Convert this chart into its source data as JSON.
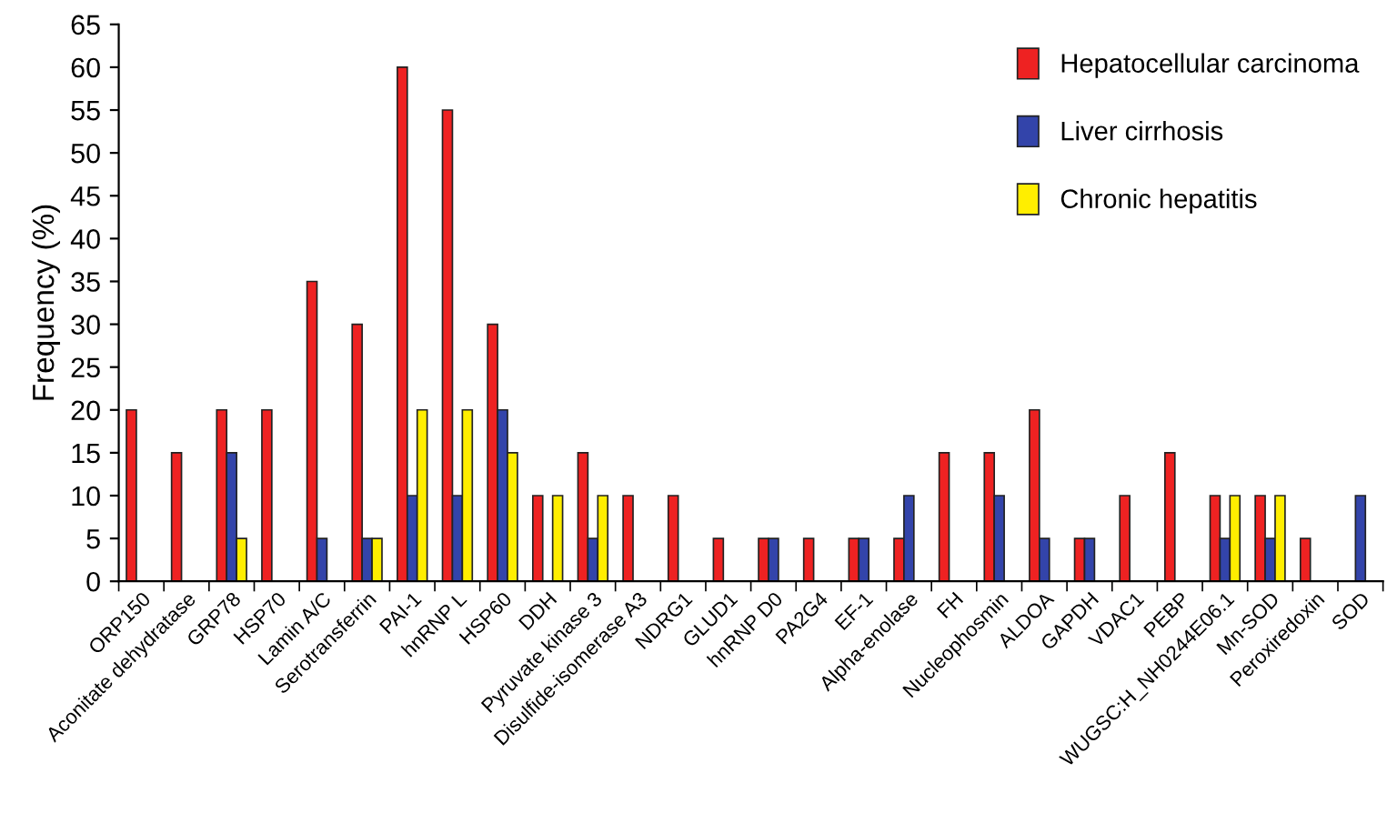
{
  "chart_data": {
    "type": "bar",
    "ylabel": "Frequency (%)",
    "categories": [
      "ORP150",
      "Aconitate dehydratase",
      "GRP78",
      "HSP70",
      "Lamin A/C",
      "Serotransferrin",
      "PAI-1",
      "hnRNP L",
      "HSP60",
      "DDH",
      "Pyruvate kinase 3",
      "Disulfide-isomerase A3",
      "NDRG1",
      "GLUD1",
      "hnRNP D0",
      "PA2G4",
      "EF-1",
      "Alpha-enolase",
      "FH",
      "Nucleophosmin",
      "ALDOA",
      "GAPDH",
      "VDAC1",
      "PEBP",
      "WUGSC:H_NH0244E06.1",
      "Mn-SOD",
      "Peroxiredoxin",
      "SOD"
    ],
    "series": [
      {
        "name": "Hepatocellular carcinoma",
        "color": "#ee2222",
        "values": [
          20,
          15,
          20,
          20,
          35,
          30,
          60,
          55,
          30,
          10,
          15,
          10,
          10,
          5,
          5,
          5,
          5,
          5,
          15,
          15,
          20,
          5,
          10,
          15,
          10,
          10,
          5,
          null
        ]
      },
      {
        "name": "Liver cirrhosis",
        "color": "#3344aa",
        "values": [
          null,
          null,
          15,
          null,
          5,
          5,
          10,
          10,
          20,
          null,
          5,
          null,
          null,
          null,
          5,
          null,
          5,
          10,
          null,
          10,
          5,
          5,
          null,
          null,
          5,
          5,
          null,
          10
        ]
      },
      {
        "name": "Chronic hepatitis",
        "color": "#ffee00",
        "values": [
          null,
          null,
          5,
          null,
          null,
          5,
          20,
          20,
          15,
          10,
          10,
          null,
          null,
          null,
          null,
          null,
          null,
          null,
          null,
          null,
          null,
          null,
          null,
          null,
          10,
          10,
          null,
          null
        ]
      }
    ],
    "ylim": [
      0,
      65
    ],
    "yticks": [
      0,
      5,
      10,
      15,
      20,
      25,
      30,
      35,
      40,
      45,
      50,
      55,
      60,
      65
    ],
    "grid": false,
    "legend": "top right"
  }
}
